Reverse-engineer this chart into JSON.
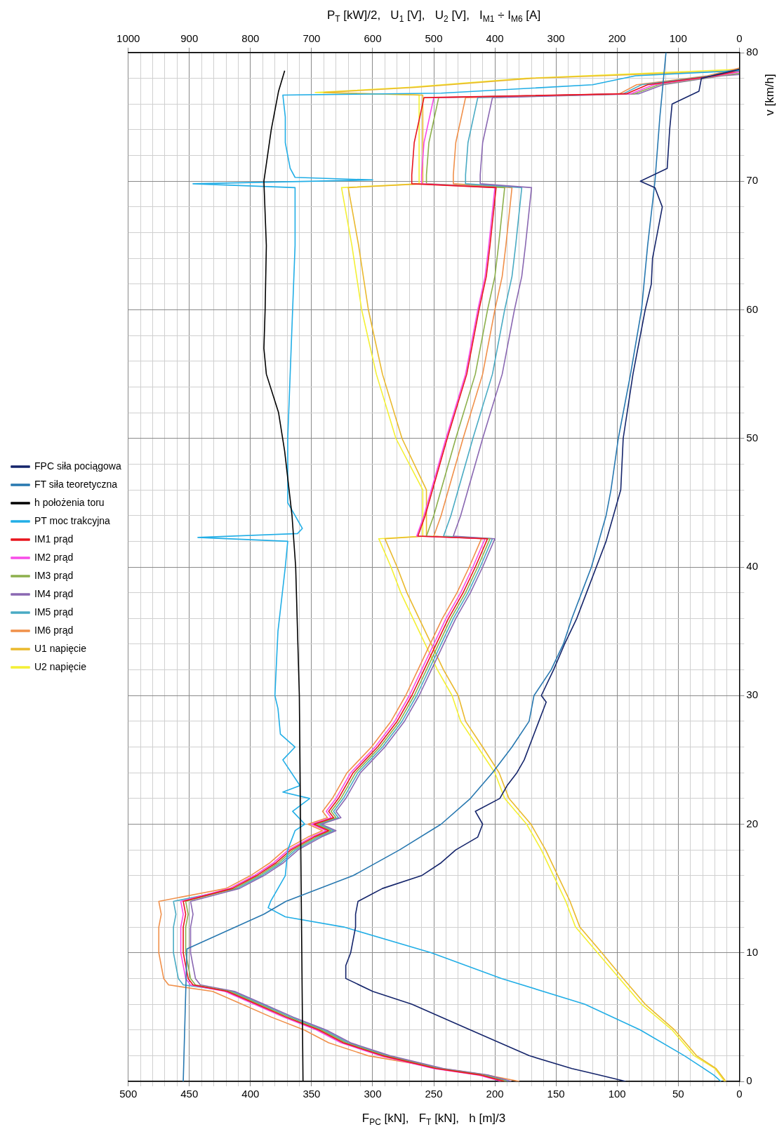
{
  "chart_data": {
    "type": "line",
    "ylabel": "v [km/h]",
    "xlabel": "F$_{PC}$ [kN],   F$_{T}$ [kN],   h [m]/3",
    "x2label": "P$_{T}$ [kW]/2,   U$_{1}$ [V],   U$_{2}$ [V],   I$_{M1}$ ÷ I$_{M6}$ [A]",
    "ylim": [
      0,
      80
    ],
    "yticks": [
      0,
      {
        "value": 2,
        "label": null
      },
      {
        "value": 4,
        "label": null
      },
      {
        "value": 6,
        "label": null
      },
      {
        "value": 8,
        "label": null
      },
      10,
      {
        "value": 12,
        "label": null
      },
      {
        "value": 14,
        "label": null
      },
      {
        "value": 16,
        "label": null
      },
      {
        "value": 18,
        "label": null
      },
      20,
      {
        "value": 22,
        "label": null
      },
      {
        "value": 24,
        "label": null
      },
      {
        "value": 26,
        "label": null
      },
      {
        "value": 28,
        "label": null
      },
      30,
      {
        "value": 32,
        "label": null
      },
      {
        "value": 34,
        "label": null
      },
      {
        "value": 36,
        "label": null
      },
      {
        "value": 38,
        "label": null
      },
      40,
      {
        "value": 42,
        "label": null
      },
      {
        "value": 44,
        "label": null
      },
      {
        "value": 46,
        "label": null
      },
      {
        "value": 48,
        "label": null
      },
      50,
      {
        "value": 52,
        "label": null
      },
      {
        "value": 54,
        "label": null
      },
      {
        "value": 56,
        "label": null
      },
      {
        "value": 58,
        "label": null
      },
      60,
      {
        "value": 62,
        "label": null
      },
      {
        "value": 64,
        "label": null
      },
      {
        "value": 66,
        "label": null
      },
      {
        "value": 68,
        "label": null
      },
      70,
      {
        "value": 72,
        "label": null
      },
      {
        "value": 74,
        "label": null
      },
      {
        "value": 76,
        "label": null
      },
      {
        "value": 78,
        "label": null
      },
      80
    ],
    "xlim": [
      500,
      0
    ],
    "xticks": [
      500,
      {
        "value": 490,
        "label": null
      },
      {
        "value": 480,
        "label": null
      },
      {
        "value": 470,
        "label": null
      },
      {
        "value": 460,
        "label": null
      },
      450,
      {
        "value": 440,
        "label": null
      },
      {
        "value": 430,
        "label": null
      },
      {
        "value": 420,
        "label": null
      },
      {
        "value": 410,
        "label": null
      },
      400,
      {
        "value": 390,
        "label": null
      },
      {
        "value": 380,
        "label": null
      },
      {
        "value": 370,
        "label": null
      },
      {
        "value": 360,
        "label": null
      },
      350,
      {
        "value": 340,
        "label": null
      },
      {
        "value": 330,
        "label": null
      },
      {
        "value": 320,
        "label": null
      },
      {
        "value": 310,
        "label": null
      },
      300,
      {
        "value": 290,
        "label": null
      },
      {
        "value": 280,
        "label": null
      },
      {
        "value": 270,
        "label": null
      },
      {
        "value": 260,
        "label": null
      },
      250,
      {
        "value": 240,
        "label": null
      },
      {
        "value": 230,
        "label": null
      },
      {
        "value": 220,
        "label": null
      },
      {
        "value": 210,
        "label": null
      },
      200,
      {
        "value": 190,
        "label": null
      },
      {
        "value": 180,
        "label": null
      },
      {
        "value": 170,
        "label": null
      },
      {
        "value": 160,
        "label": null
      },
      150,
      {
        "value": 140,
        "label": null
      },
      {
        "value": 130,
        "label": null
      },
      {
        "value": 120,
        "label": null
      },
      {
        "value": 110,
        "label": null
      },
      100,
      {
        "value": 90,
        "label": null
      },
      {
        "value": 80,
        "label": null
      },
      {
        "value": 70,
        "label": null
      },
      {
        "value": 60,
        "label": null
      },
      50,
      {
        "value": 40,
        "label": null
      },
      {
        "value": 30,
        "label": null
      },
      {
        "value": 20,
        "label": null
      },
      {
        "value": 10,
        "label": null
      },
      0
    ],
    "x2lim": [
      1000,
      0
    ],
    "x2ticks": [
      1000,
      900,
      800,
      700,
      600,
      500,
      400,
      300,
      200,
      100,
      0
    ],
    "grid": true,
    "legend": "left",
    "series": [
      {
        "name": "FPC siła pociągowa",
        "color": "#15256b",
        "values": [
          0,
          0.5,
          1,
          2,
          4,
          6,
          7,
          8,
          9,
          10,
          12,
          13,
          14,
          15,
          16,
          17,
          18,
          19,
          20,
          21,
          22,
          23,
          24,
          25,
          26,
          28,
          29.5,
          30,
          32,
          34,
          36,
          38,
          40,
          42,
          44,
          46,
          50,
          55,
          60,
          62,
          64,
          66,
          68,
          69.5,
          70,
          71,
          74,
          76,
          77,
          78,
          78.7
        ],
        "x": [
          93,
          115,
          137,
          172,
          220,
          268,
          300,
          322,
          322,
          318,
          314,
          314,
          312,
          292,
          260,
          244,
          232,
          214,
          210,
          216,
          196,
          190,
          182,
          176,
          172,
          164,
          158,
          162,
          152,
          143,
          133,
          125,
          117,
          109,
          103,
          97,
          95,
          87,
          77,
          72,
          71,
          67,
          63,
          69,
          81,
          59,
          57,
          55,
          33,
          31,
          0
        ]
      },
      {
        "name": "FT siła teoretyczna",
        "color": "#2878b0",
        "values": [
          0,
          10.3,
          13,
          14,
          16,
          18,
          20,
          22,
          24,
          26,
          28,
          30,
          32,
          34,
          36,
          38,
          40,
          42,
          44,
          46,
          50,
          55,
          60,
          65,
          70,
          75,
          80
        ],
        "x": [
          455,
          452,
          389,
          371,
          316,
          278,
          244,
          220,
          202,
          186,
          172,
          168,
          154,
          144,
          137,
          129,
          121,
          115,
          109,
          105,
          99,
          89,
          80,
          75,
          69,
          65,
          60
        ]
      },
      {
        "name": "h położenia toru",
        "color": "#000000",
        "values": [
          0,
          30,
          40,
          44,
          49,
          52,
          55,
          57,
          60,
          65,
          70,
          74,
          77,
          78.6
        ],
        "x": [
          357,
          360,
          363,
          366,
          372,
          377,
          387,
          389,
          388,
          387,
          389,
          383,
          377,
          372
        ]
      },
      {
        "name": "PT moc trakcyjna",
        "color": "#22aee6",
        "axis": "x2",
        "values": [
          0,
          0.5,
          1,
          2,
          4,
          6,
          8,
          10,
          12,
          12.8,
          13.5,
          14,
          16,
          18,
          19.5,
          20,
          21,
          22,
          22.5,
          23,
          25,
          26,
          27,
          29,
          30,
          35,
          40,
          42,
          42.3,
          42.6,
          43,
          45,
          50,
          55,
          60,
          65,
          69.5,
          69.8,
          70.1,
          70.3,
          71,
          73,
          75,
          76.7,
          76.85,
          77.5,
          78.2,
          78.6
        ],
        "x": [
          30,
          42,
          58,
          90,
          162,
          253,
          389,
          504,
          647,
          743,
          771,
          767,
          743,
          739,
          727,
          711,
          731,
          703,
          747,
          719,
          747,
          727,
          751,
          755,
          760,
          755,
          743,
          739,
          886,
          723,
          715,
          739,
          739,
          735,
          731,
          727,
          727,
          894,
          600,
          727,
          735,
          743,
          743,
          747,
          488,
          240,
          170,
          0
        ]
      },
      {
        "name": "IM1 prąd",
        "color": "#e8161e",
        "axis": "x2",
        "values": [
          0,
          0.5,
          1,
          2,
          3,
          4,
          5,
          6,
          7,
          7.5,
          8,
          10,
          12,
          13,
          14,
          15,
          16,
          17,
          18,
          19,
          19.5,
          20,
          20.5,
          21,
          22,
          23,
          24,
          25,
          26,
          28,
          30,
          32,
          34,
          36,
          38,
          40,
          42.2,
          42.4,
          44,
          46,
          50,
          55,
          60,
          62.6,
          65,
          69.5,
          69.8,
          70.5,
          73,
          76.5,
          76.8,
          77.5,
          78.2,
          78.6
        ],
        "x": [
          385,
          424,
          496,
          584,
          648,
          688,
          742,
          790,
          838,
          894,
          902,
          910,
          910,
          906,
          910,
          830,
          790,
          758,
          734,
          696,
          672,
          696,
          664,
          672,
          656,
          644,
          632,
          612,
          592,
          560,
          536,
          516,
          496,
          476,
          452,
          432,
          412,
          526,
          514,
          502,
          478,
          446,
          426,
          414,
          408,
          398,
          536,
          536,
          532,
          516,
          185,
          150,
          40,
          0
        ]
      },
      {
        "name": "IM2 prąd",
        "color": "#f84ce8",
        "axis": "x2",
        "values": [
          0,
          0.5,
          1,
          2,
          3,
          4,
          5,
          6,
          7,
          7.5,
          8,
          10,
          12,
          13,
          14,
          15,
          16,
          17,
          18,
          19,
          19.5,
          20,
          20.5,
          21,
          22,
          23,
          24,
          25,
          26,
          28,
          30,
          32,
          34,
          36,
          38,
          40,
          42.2,
          42.4,
          44,
          46,
          50,
          55,
          60,
          62.6,
          65,
          69.5,
          69.8,
          70.5,
          73,
          76.5,
          76.8,
          77.5,
          78.2,
          78.5
        ],
        "x": [
          389,
          428,
          500,
          588,
          652,
          692,
          746,
          794,
          842,
          898,
          906,
          914,
          914,
          910,
          914,
          834,
          794,
          762,
          738,
          700,
          676,
          700,
          668,
          676,
          660,
          648,
          636,
          616,
          596,
          564,
          540,
          520,
          500,
          480,
          456,
          436,
          416,
          528,
          516,
          504,
          480,
          448,
          428,
          416,
          410,
          400,
          520,
          520,
          516,
          500,
          178,
          140,
          36,
          0
        ]
      },
      {
        "name": "IM3 prąd",
        "color": "#8db04c",
        "axis": "x2",
        "values": [
          0,
          0.5,
          1,
          2,
          3,
          4,
          5,
          6,
          7,
          7.5,
          8,
          10,
          12,
          13,
          14,
          15,
          16,
          17,
          18,
          19,
          19.5,
          20,
          20.5,
          21,
          22,
          23,
          24,
          25,
          26,
          28,
          30,
          32,
          34,
          36,
          38,
          40,
          42.2,
          42.4,
          44,
          46,
          50,
          55,
          60,
          62.6,
          65,
          69.5,
          69.8,
          70.5,
          73,
          76.5,
          76.8,
          77.5,
          78.2,
          78.4
        ],
        "x": [
          381,
          420,
          492,
          580,
          644,
          684,
          738,
          786,
          834,
          890,
          898,
          906,
          906,
          902,
          906,
          826,
          786,
          754,
          730,
          692,
          668,
          692,
          660,
          668,
          652,
          640,
          628,
          608,
          588,
          556,
          532,
          512,
          492,
          472,
          448,
          428,
          408,
          512,
          500,
          488,
          464,
          432,
          412,
          400,
          394,
          384,
          512,
          512,
          508,
          492,
          172,
          132,
          32,
          0
        ]
      },
      {
        "name": "IM4 prąd",
        "color": "#8a68b2",
        "axis": "x2",
        "values": [
          0,
          0.5,
          1,
          2,
          3,
          4,
          5,
          6,
          7,
          7.5,
          8,
          10,
          12,
          13,
          14,
          15,
          16,
          17,
          18,
          19,
          19.5,
          20,
          20.5,
          21,
          22,
          23,
          24,
          25,
          26,
          28,
          30,
          32,
          34,
          36,
          38,
          40,
          42.2,
          42.4,
          44,
          46,
          50,
          55,
          60,
          62.6,
          65,
          69.5,
          69.8,
          70.5,
          73,
          76.5,
          76.8,
          77.5,
          78.2,
          78.3
        ],
        "x": [
          373,
          412,
          484,
          572,
          636,
          676,
          730,
          778,
          826,
          882,
          890,
          898,
          898,
          894,
          898,
          818,
          778,
          746,
          722,
          684,
          660,
          684,
          652,
          660,
          644,
          632,
          620,
          600,
          580,
          548,
          524,
          504,
          484,
          464,
          440,
          420,
          400,
          468,
          456,
          444,
          420,
          388,
          368,
          356,
          350,
          340,
          424,
          424,
          420,
          404,
          165,
          125,
          28,
          0
        ]
      },
      {
        "name": "IM5 prąd",
        "color": "#4aabc4",
        "axis": "x2",
        "values": [
          0,
          0.5,
          1,
          2,
          3,
          4,
          5,
          6,
          7,
          7.5,
          8,
          10,
          12,
          13,
          14,
          15,
          16,
          17,
          18,
          19,
          19.5,
          20,
          20.5,
          21,
          22,
          23,
          24,
          25,
          26,
          28,
          30,
          32,
          34,
          36,
          38,
          40,
          42.2,
          42.4,
          44,
          46,
          50,
          55,
          60,
          62.6,
          65,
          69.5,
          69.8,
          70.5,
          73,
          76.5,
          76.8,
          77.5,
          78.2,
          78.7
        ],
        "x": [
          377,
          416,
          488,
          576,
          640,
          680,
          734,
          782,
          830,
          910,
          918,
          926,
          926,
          922,
          926,
          822,
          782,
          750,
          726,
          688,
          664,
          688,
          656,
          664,
          648,
          636,
          624,
          604,
          584,
          552,
          528,
          508,
          488,
          468,
          444,
          424,
          404,
          484,
          472,
          460,
          436,
          404,
          384,
          372,
          366,
          356,
          448,
          448,
          444,
          428,
          190,
          160,
          46,
          0
        ]
      },
      {
        "name": "IM6 prąd",
        "color": "#f0904a",
        "axis": "x2",
        "values": [
          0,
          0.5,
          1,
          2,
          3,
          4,
          5,
          6,
          7,
          7.5,
          8,
          10,
          12,
          13,
          14,
          15,
          16,
          17,
          18,
          19,
          19.5,
          20,
          20.5,
          21,
          22,
          23,
          24,
          25,
          26,
          28,
          30,
          32,
          34,
          36,
          38,
          40,
          42.2,
          42.4,
          44,
          46,
          50,
          55,
          60,
          62.6,
          65,
          69.5,
          69.8,
          70.5,
          73,
          76.5,
          76.8,
          77.5,
          78.2,
          78.8
        ],
        "x": [
          360,
          414,
          486,
          608,
          672,
          712,
          766,
          814,
          862,
          934,
          942,
          950,
          950,
          946,
          950,
          840,
          800,
          768,
          744,
          706,
          682,
          706,
          674,
          682,
          666,
          654,
          642,
          622,
          602,
          570,
          546,
          526,
          506,
          486,
          462,
          442,
          422,
          500,
          488,
          476,
          452,
          420,
          400,
          388,
          382,
          372,
          468,
          468,
          464,
          448,
          196,
          168,
          52,
          0
        ]
      },
      {
        "name": "U1 napięcie",
        "color": "#eab92e",
        "axis": "x2",
        "values": [
          0,
          1,
          2,
          4,
          6,
          8,
          10,
          12,
          14,
          16,
          18,
          20,
          22,
          24,
          26,
          28,
          30,
          32,
          34,
          36,
          38,
          40,
          42.2,
          42.4,
          46,
          50,
          55,
          60,
          65,
          69.5,
          69.8,
          76.7,
          76.9,
          77.3,
          78,
          78.6
        ],
        "x": [
          22,
          38,
          70,
          106,
          154,
          190,
          225,
          261,
          277,
          297,
          317,
          341,
          377,
          393,
          420,
          448,
          460,
          484,
          504,
          524,
          544,
          560,
          580,
          512,
          512,
          552,
          584,
          607,
          623,
          640,
          518,
          518,
          680,
          530,
          340,
          0
        ]
      },
      {
        "name": "U2 napięcie",
        "color": "#f4f034",
        "axis": "x2",
        "values": [
          0,
          1,
          2,
          4,
          6,
          8,
          10,
          12,
          14,
          16,
          18,
          20,
          22,
          24,
          26,
          28,
          30,
          32,
          34,
          36,
          38,
          40,
          42.2,
          42.4,
          46,
          50,
          55,
          60,
          65,
          69.5,
          69.8,
          76.7,
          76.9,
          77.3,
          78,
          78.7
        ],
        "x": [
          24,
          40,
          74,
          110,
          160,
          196,
          232,
          268,
          284,
          304,
          324,
          348,
          384,
          400,
          428,
          456,
          470,
          494,
          514,
          534,
          554,
          570,
          590,
          518,
          518,
          562,
          594,
          618,
          634,
          651,
          524,
          524,
          694,
          542,
          350,
          0
        ]
      }
    ]
  }
}
